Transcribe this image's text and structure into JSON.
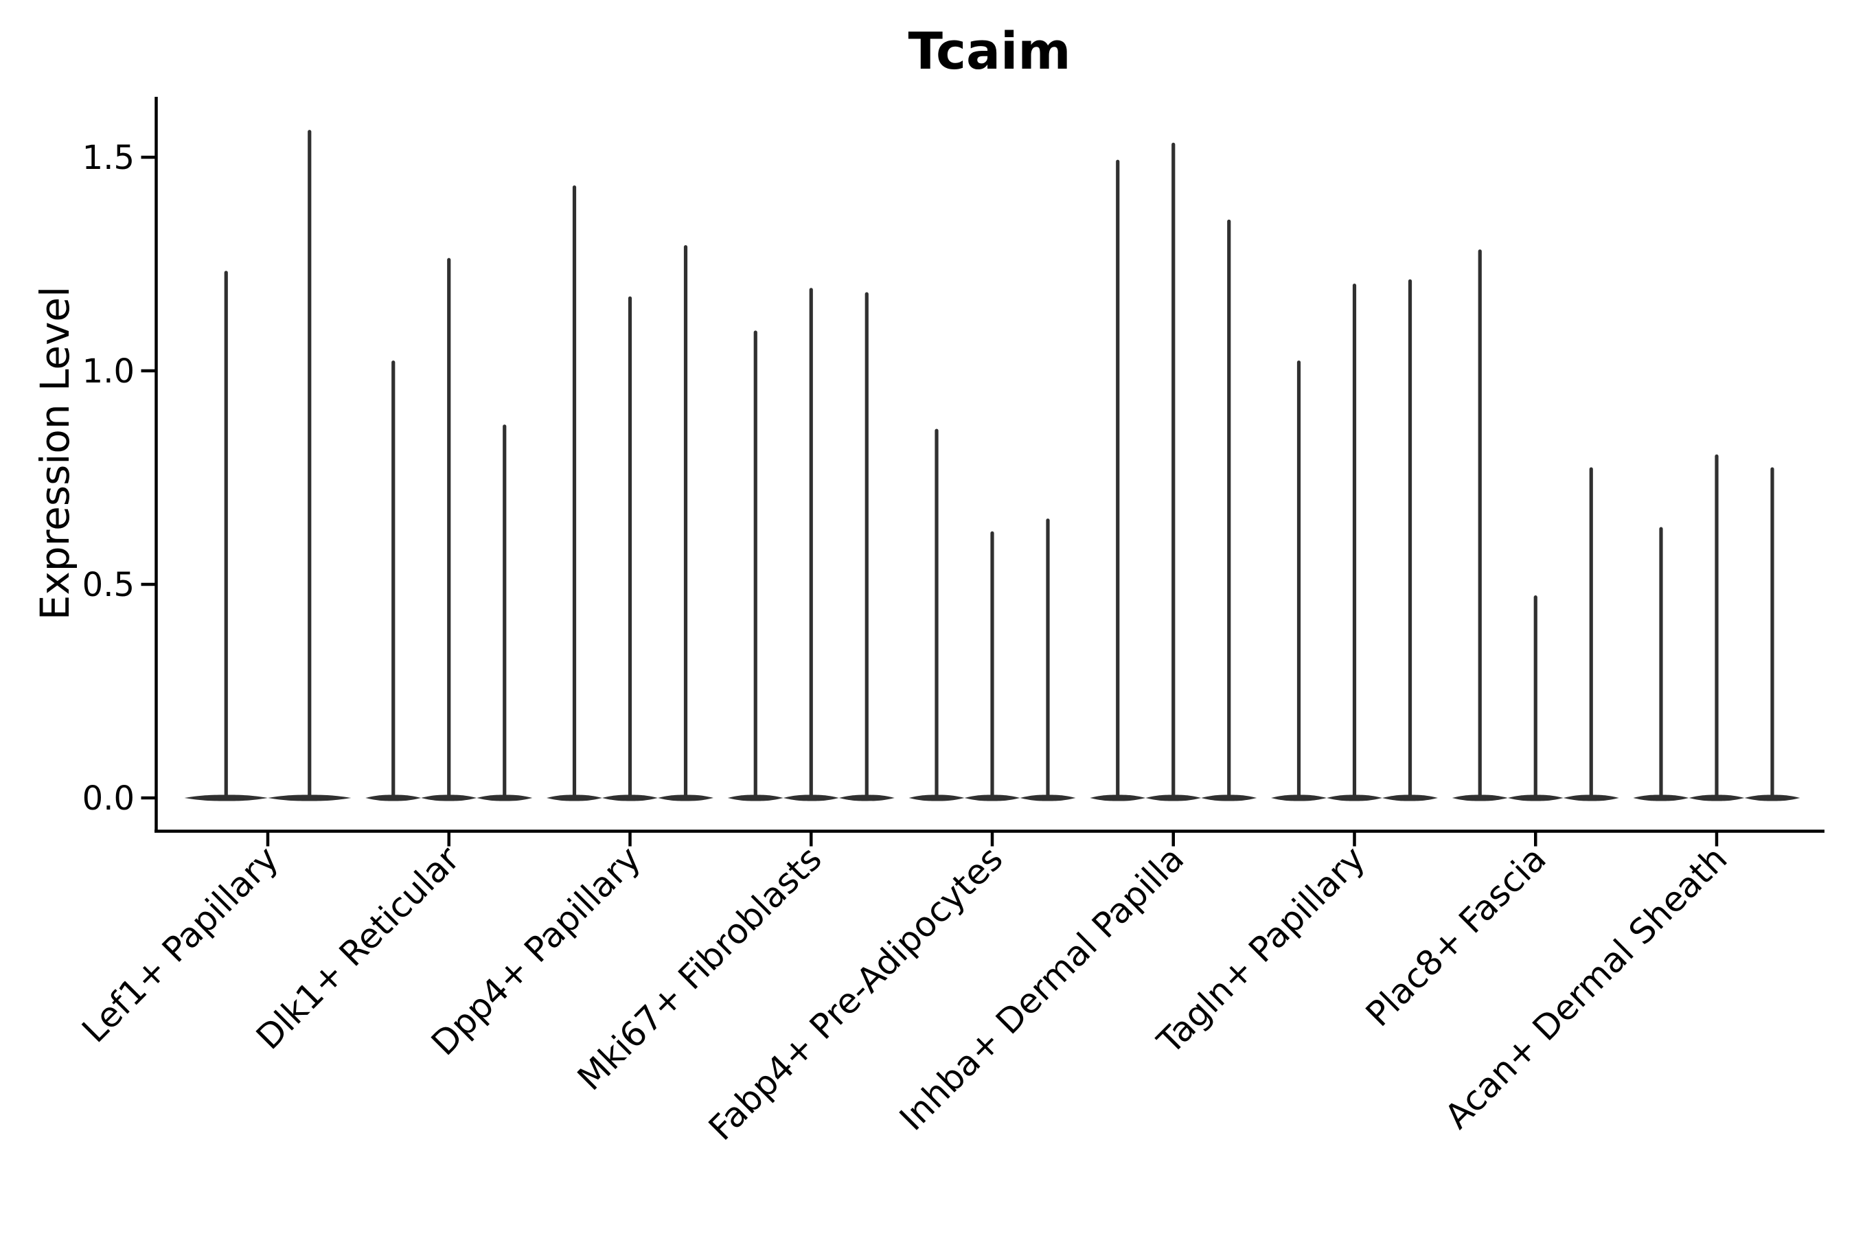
{
  "figure": {
    "background": "#ffffff"
  },
  "chart_data": {
    "type": "violin",
    "title": "Tcaim",
    "xlabel": "",
    "ylabel": "Expression Level",
    "grid": false,
    "legend": "none",
    "axis_color": "#000000",
    "violin_color": "#303030",
    "ylim": [
      -0.08,
      1.64
    ],
    "yticks": {
      "values": [
        0.0,
        0.5,
        1.0,
        1.5
      ],
      "labels": [
        "0.0",
        "0.5",
        "1.0",
        "1.5"
      ]
    },
    "x_tick_rotation_degrees": 45,
    "distribution_shape": "Each violin has nearly all density flattened at expression level 0 with a single thin spike rising to its maximum value",
    "groups": [
      {
        "label": "Lef1+ Papillary",
        "violin_max_values": [
          1.23,
          1.56
        ]
      },
      {
        "label": "Dlk1+ Reticular",
        "violin_max_values": [
          1.02,
          1.26,
          0.87
        ]
      },
      {
        "label": "Dpp4+ Papillary",
        "violin_max_values": [
          1.43,
          1.17,
          1.29
        ]
      },
      {
        "label": "Mki67+ Fibroblasts",
        "violin_max_values": [
          1.09,
          1.19,
          1.18
        ]
      },
      {
        "label": "Fabp4+ Pre-Adipocytes",
        "violin_max_values": [
          0.86,
          0.62,
          0.65
        ]
      },
      {
        "label": "Inhba+ Dermal Papilla",
        "violin_max_values": [
          1.49,
          1.53,
          1.35
        ]
      },
      {
        "label": "Tagln+ Papillary",
        "violin_max_values": [
          1.02,
          1.2,
          1.21
        ]
      },
      {
        "label": "Plac8+ Fascia",
        "violin_max_values": [
          1.28,
          0.47,
          0.77
        ]
      },
      {
        "label": "Acan+ Dermal Sheath",
        "violin_max_values": [
          0.63,
          0.8,
          0.77
        ]
      }
    ]
  }
}
